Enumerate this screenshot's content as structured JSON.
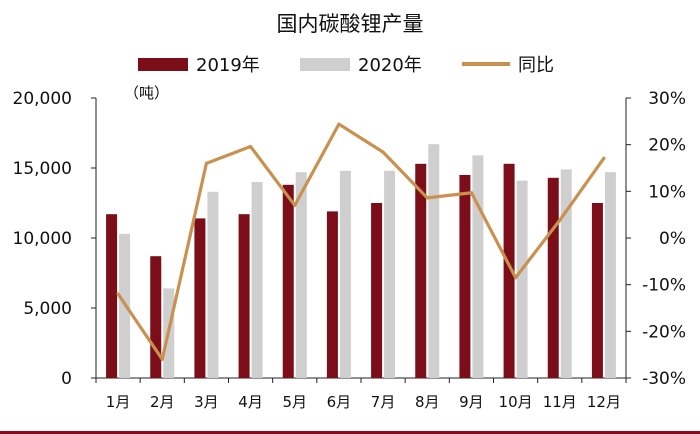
{
  "chart_data": {
    "type": "bar",
    "title": "国内碳酸锂产量",
    "unit_label": "（吨）",
    "categories": [
      "1月",
      "2月",
      "3月",
      "4月",
      "5月",
      "6月",
      "7月",
      "8月",
      "9月",
      "10月",
      "11月",
      "12月"
    ],
    "series": [
      {
        "name": "2019年",
        "type": "bar",
        "axis": "left",
        "color": "#7b0e18",
        "values": [
          11700,
          8700,
          11400,
          11700,
          13800,
          11900,
          12500,
          15300,
          14500,
          15300,
          14300,
          12500
        ]
      },
      {
        "name": "2020年",
        "type": "bar",
        "axis": "left",
        "color": "#cfcfcf",
        "values": [
          10300,
          6400,
          13300,
          14000,
          14700,
          14800,
          14800,
          16700,
          15900,
          14100,
          14900,
          14700
        ]
      },
      {
        "name": "同比",
        "type": "line",
        "axis": "right",
        "color": "#c89150",
        "values": [
          -12,
          -26,
          16,
          19.6,
          7,
          24.4,
          18.4,
          8.6,
          9.7,
          -8.5,
          3.8,
          17.1
        ]
      }
    ],
    "left_axis": {
      "ylim": [
        0,
        20000
      ],
      "ticks": [
        0,
        5000,
        10000,
        15000,
        20000
      ],
      "tick_labels": [
        "0",
        "5,000",
        "10,000",
        "15,000",
        "20,000"
      ]
    },
    "right_axis": {
      "ylim": [
        -30,
        30
      ],
      "ticks": [
        -30,
        -20,
        -10,
        0,
        10,
        20,
        30
      ],
      "tick_labels": [
        "-30%",
        "-20%",
        "-10%",
        "0%",
        "10%",
        "20%",
        "30%"
      ]
    },
    "grid": false,
    "legend_position": "top"
  }
}
